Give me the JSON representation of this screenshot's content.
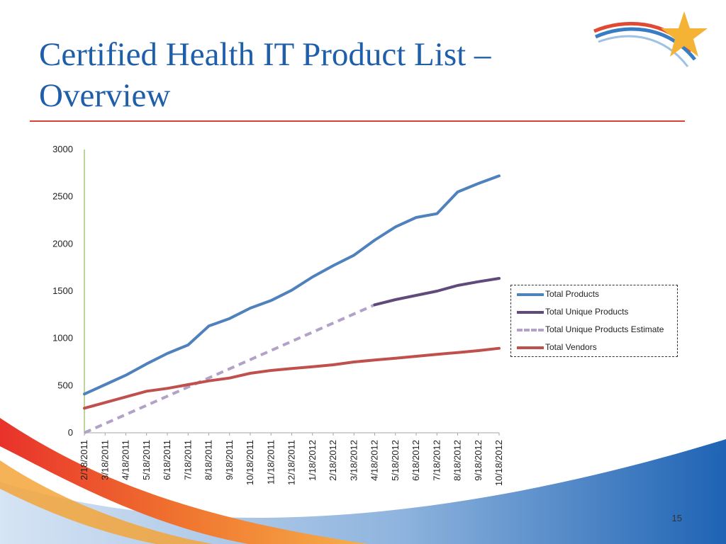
{
  "slide": {
    "title": "Certified Health IT Product List –\nOverview",
    "page_number": "15"
  },
  "colors": {
    "title": "#1f5ea8",
    "rule": "#d9423b",
    "total_products": "#4f81bd",
    "total_unique_products": "#604a7b",
    "total_unique_estimate": "#b3a2c7",
    "total_vendors": "#c0504d"
  },
  "decorations": {
    "logo": "orange-star-swoosh-icon",
    "footer": "red-orange-blue-swoosh-decoration"
  },
  "chart_data": {
    "type": "line",
    "title": "",
    "xlabel": "",
    "ylabel": "",
    "ylim": [
      0,
      3000
    ],
    "yticks": [
      "0",
      "500",
      "1000",
      "1500",
      "2000",
      "2500",
      "3000"
    ],
    "xtick_labels": [
      "2/18/2011",
      "3/18/2011",
      "4/18/2011",
      "5/18/2011",
      "6/18/2011",
      "7/18/2011",
      "8/18/2011",
      "9/18/2011",
      "10/18/2011",
      "11/18/2011",
      "12/18/2011",
      "1/18/2012",
      "2/18/2012",
      "3/18/2012",
      "4/18/2012",
      "5/18/2012",
      "6/18/2012",
      "7/18/2012",
      "8/18/2012",
      "9/18/2012",
      "10/18/2012"
    ],
    "grid": false,
    "legend_position": "right",
    "series": [
      {
        "name": "Total Products",
        "style": "solid",
        "x": [
          "2/18/2011",
          "3/18/2011",
          "4/18/2011",
          "5/18/2011",
          "6/18/2011",
          "7/18/2011",
          "8/18/2011",
          "9/18/2011",
          "10/18/2011",
          "11/18/2011",
          "12/18/2011",
          "1/18/2012",
          "2/18/2012",
          "3/18/2012",
          "4/18/2012",
          "5/18/2012",
          "6/18/2012",
          "7/18/2012",
          "8/18/2012",
          "9/18/2012",
          "10/18/2012"
        ],
        "values": [
          410,
          510,
          610,
          730,
          840,
          930,
          1130,
          1210,
          1320,
          1400,
          1510,
          1650,
          1770,
          1880,
          2040,
          2180,
          2280,
          2320,
          2550,
          2640,
          2720
        ]
      },
      {
        "name": "Total Unique Products",
        "style": "solid",
        "x": [
          "4/18/2012",
          "5/18/2012",
          "6/18/2012",
          "7/18/2012",
          "8/18/2012",
          "9/18/2012",
          "10/18/2012"
        ],
        "values": [
          1355,
          1410,
          1455,
          1500,
          1560,
          1600,
          1635
        ]
      },
      {
        "name": "Total Unique Products Estimate",
        "style": "dashed",
        "x": [
          "2/18/2011",
          "4/18/2012"
        ],
        "values": [
          0,
          1355
        ]
      },
      {
        "name": "Total Vendors",
        "style": "solid",
        "x": [
          "2/18/2011",
          "3/18/2011",
          "4/18/2011",
          "5/18/2011",
          "6/18/2011",
          "7/18/2011",
          "8/18/2011",
          "9/18/2011",
          "10/18/2011",
          "11/18/2011",
          "12/18/2011",
          "1/18/2012",
          "2/18/2012",
          "3/18/2012",
          "4/18/2012",
          "5/18/2012",
          "6/18/2012",
          "7/18/2012",
          "8/18/2012",
          "9/18/2012",
          "10/18/2012"
        ],
        "values": [
          260,
          320,
          380,
          440,
          470,
          510,
          550,
          580,
          630,
          660,
          680,
          700,
          720,
          750,
          770,
          790,
          810,
          830,
          850,
          870,
          895
        ]
      }
    ]
  }
}
